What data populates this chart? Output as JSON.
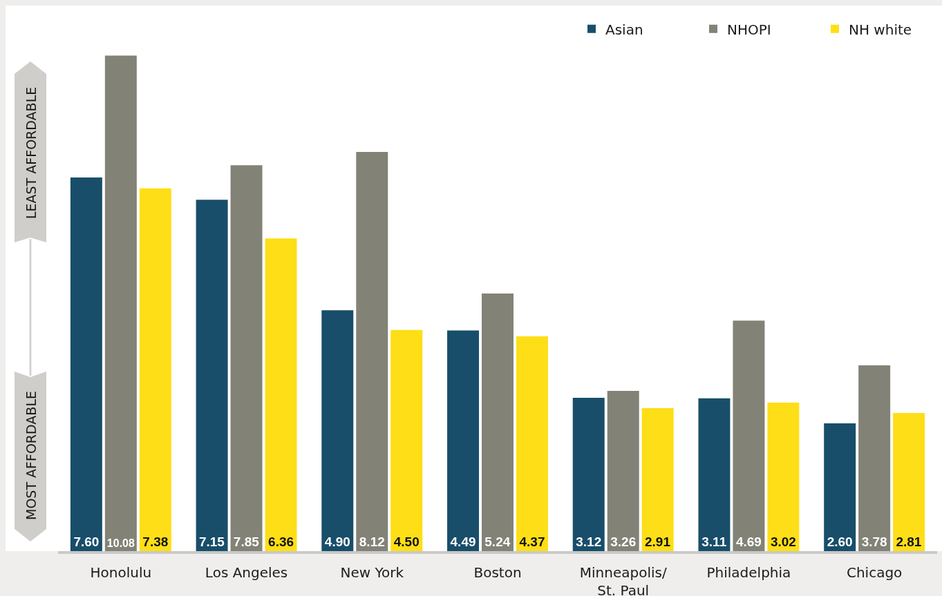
{
  "chart_data": {
    "type": "bar",
    "categories": [
      "Honolulu",
      "Los Angeles",
      "New York",
      "Boston",
      "Minneapolis/\nSt. Paul",
      "Philadelphia",
      "Chicago"
    ],
    "series": [
      {
        "name": "Asian",
        "color": "#184e6a",
        "values": [
          7.6,
          7.15,
          4.9,
          4.49,
          3.12,
          3.11,
          2.6
        ],
        "value_labels": [
          "7.60",
          "7.15",
          "4.90",
          "4.49",
          "3.12",
          "3.11",
          "2.60"
        ]
      },
      {
        "name": "NHOPI",
        "color": "#828277",
        "values": [
          10.08,
          7.85,
          8.12,
          5.24,
          3.26,
          4.69,
          3.78
        ],
        "value_labels": [
          "10.08",
          "7.85",
          "8.12",
          "5.24",
          "3.26",
          "4.69",
          "3.78"
        ]
      },
      {
        "name": "NH white",
        "color": "#fede16",
        "values": [
          7.38,
          6.36,
          4.5,
          4.37,
          2.91,
          3.02,
          2.81
        ],
        "value_labels": [
          "7.38",
          "6.36",
          "4.50",
          "4.37",
          "2.91",
          "3.02",
          "2.81"
        ]
      }
    ],
    "ylim": [
      0,
      11.1
    ],
    "tick_labels": "x",
    "legend": "top right",
    "annotations": [
      "LEAST AFFORDABLE",
      "MOST AFFORDABLE"
    ]
  }
}
